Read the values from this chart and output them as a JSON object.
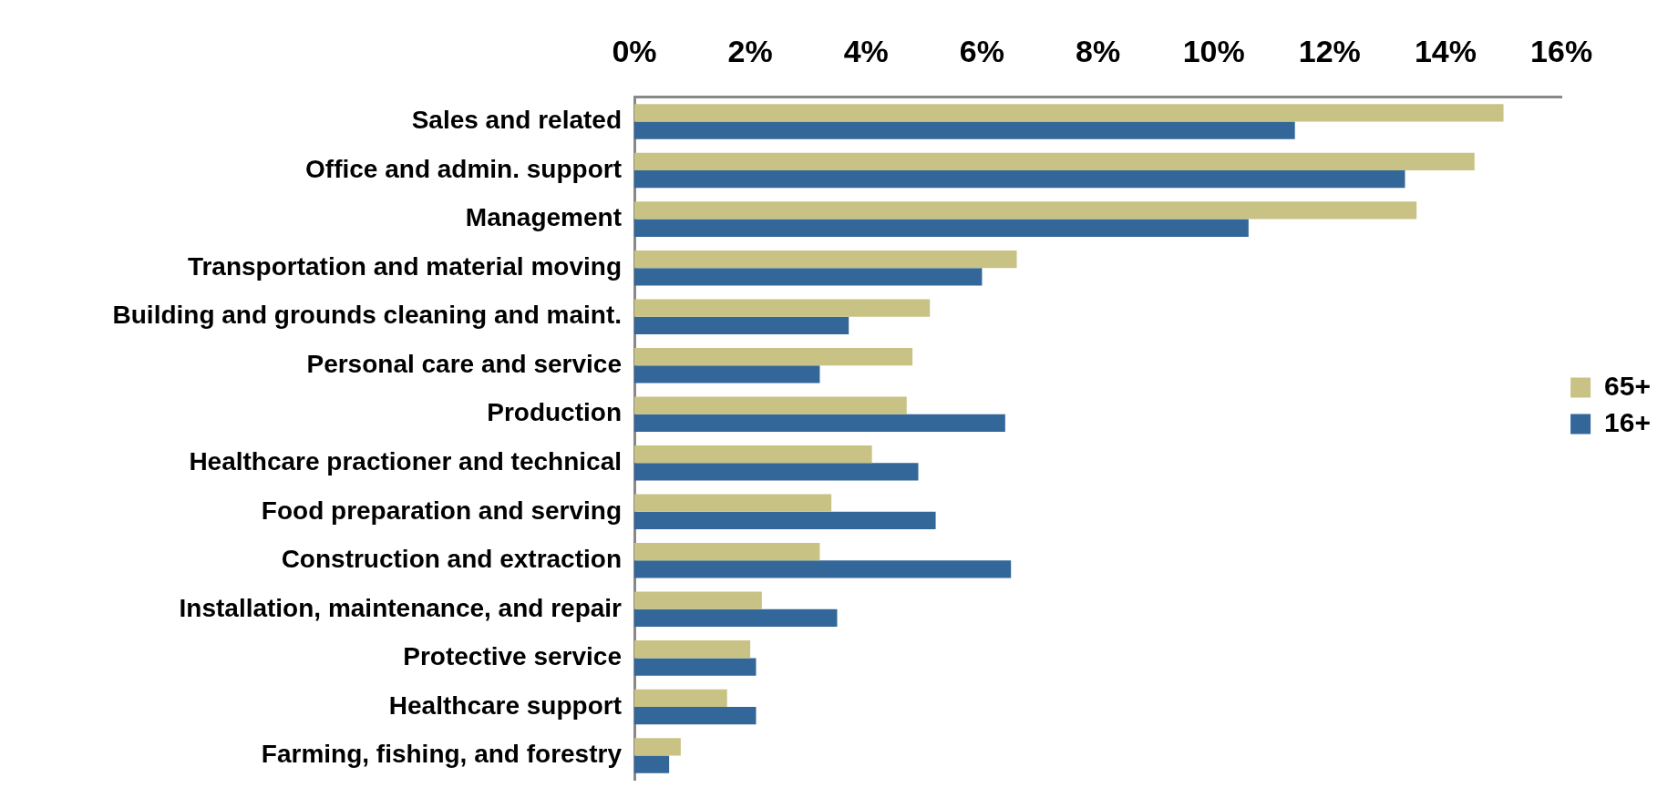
{
  "chart_data": {
    "type": "bar",
    "orientation": "horizontal",
    "categories": [
      "Sales and related",
      "Office and admin. support",
      "Management",
      "Transportation and material moving",
      "Building and grounds cleaning and maint.",
      "Personal care and service",
      "Production",
      "Healthcare practioner and technical",
      "Food preparation and serving",
      "Construction and extraction",
      "Installation, maintenance, and repair",
      "Protective service",
      "Healthcare support",
      "Farming, fishing, and forestry"
    ],
    "series": [
      {
        "name": "65+",
        "color": "#c8c284",
        "values": [
          15.0,
          14.5,
          13.5,
          6.6,
          5.1,
          4.8,
          4.7,
          4.1,
          3.4,
          3.2,
          2.2,
          2.0,
          1.6,
          0.8
        ]
      },
      {
        "name": "16+",
        "color": "#336699",
        "values": [
          11.4,
          13.3,
          10.6,
          6.0,
          3.7,
          3.2,
          6.4,
          4.9,
          5.2,
          6.5,
          3.5,
          2.1,
          2.1,
          0.6
        ]
      }
    ],
    "xlim": [
      0,
      16
    ],
    "xticks": [
      {
        "value": 0,
        "label": "0%"
      },
      {
        "value": 2,
        "label": "2%"
      },
      {
        "value": 4,
        "label": "4%"
      },
      {
        "value": 6,
        "label": "6%"
      },
      {
        "value": 8,
        "label": "8%"
      },
      {
        "value": 10,
        "label": "10%"
      },
      {
        "value": 12,
        "label": "12%"
      },
      {
        "value": 14,
        "label": "14%"
      },
      {
        "value": 16,
        "label": "16%"
      }
    ],
    "grid": false,
    "legend": "right"
  }
}
